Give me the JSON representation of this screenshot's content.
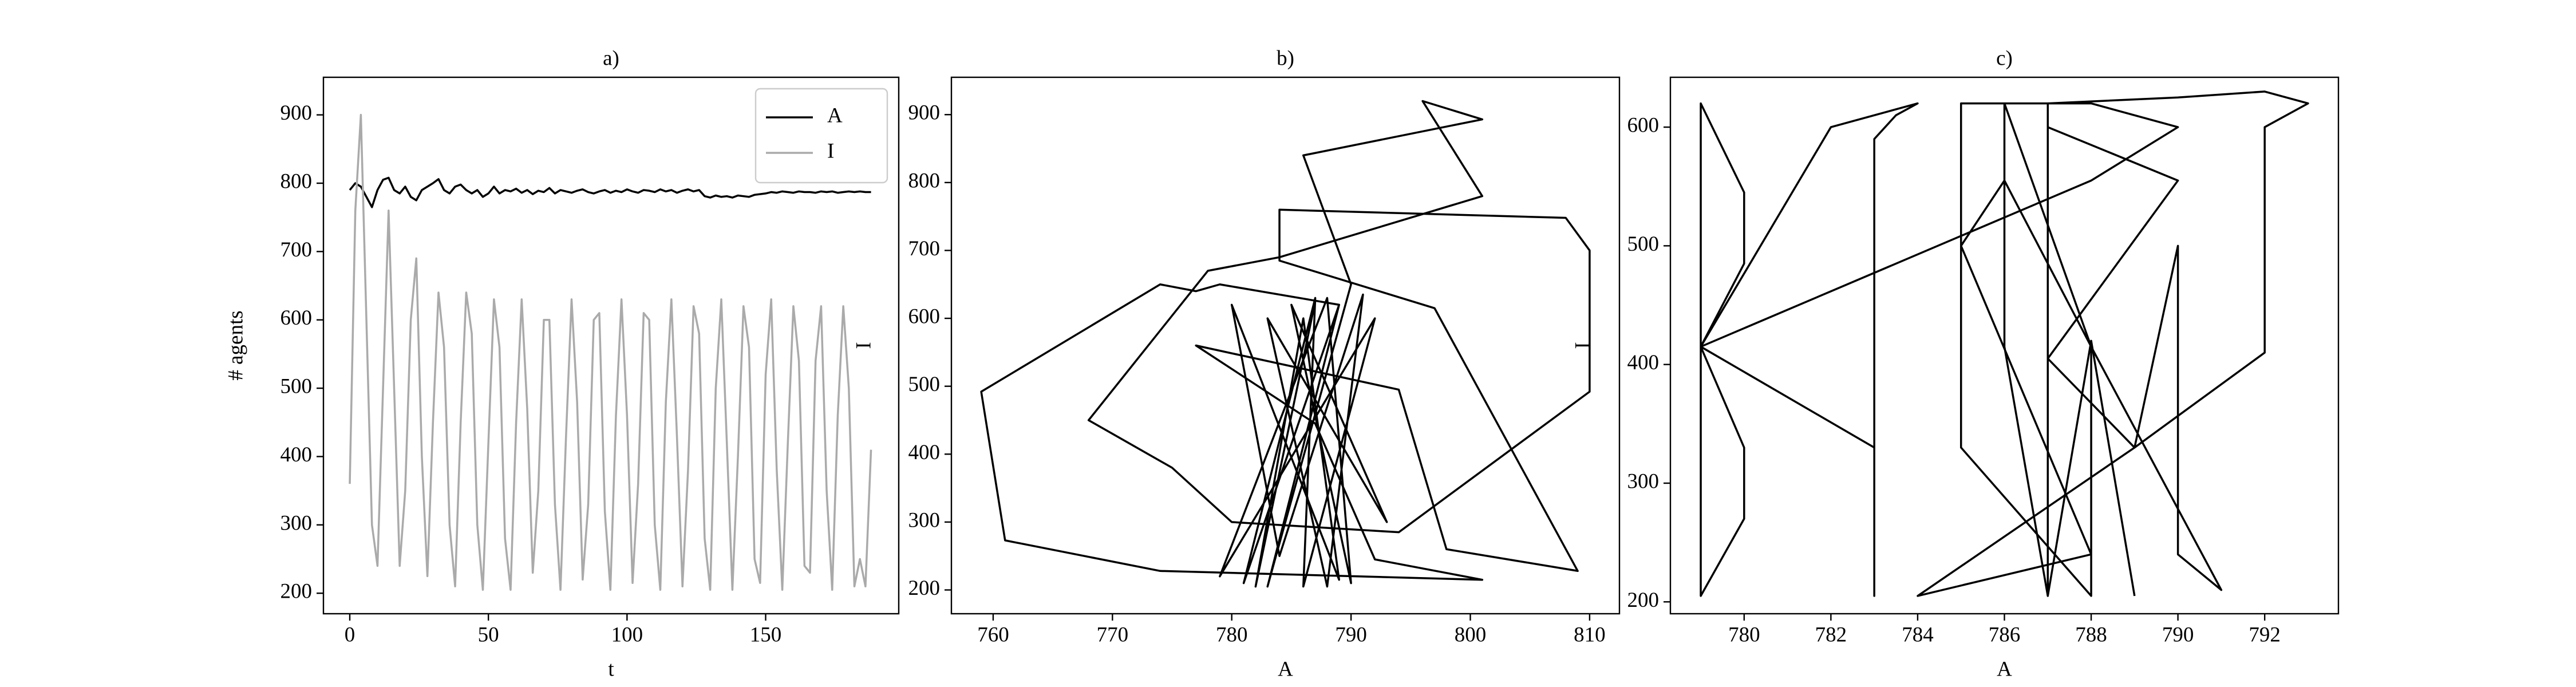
{
  "chart_data": [
    {
      "type": "line",
      "title": "a)",
      "x_label": "t",
      "y_label": "# agents",
      "legend": "upper right",
      "x": [
        0,
        2,
        4,
        6,
        8,
        10,
        12,
        14,
        16,
        18,
        20,
        22,
        24,
        26,
        28,
        30,
        32,
        34,
        36,
        38,
        40,
        42,
        44,
        46,
        48,
        50,
        52,
        54,
        56,
        58,
        60,
        62,
        64,
        66,
        68,
        70,
        72,
        74,
        76,
        78,
        80,
        82,
        84,
        86,
        88,
        90,
        92,
        94,
        96,
        98,
        100,
        102,
        104,
        106,
        108,
        110,
        112,
        114,
        116,
        118,
        120,
        122,
        124,
        126,
        128,
        130,
        132,
        134,
        136,
        138,
        140,
        142,
        144,
        146,
        148,
        150,
        152,
        154,
        156,
        158,
        160,
        162,
        164,
        166,
        168,
        170,
        172,
        174,
        176,
        178,
        180,
        182,
        184,
        186,
        188
      ],
      "series": [
        {
          "name": "A",
          "color": "#000000",
          "values": [
            790,
            800,
            795,
            780,
            765,
            790,
            805,
            808,
            790,
            785,
            795,
            780,
            775,
            790,
            795,
            800,
            806,
            790,
            785,
            795,
            798,
            790,
            785,
            790,
            780,
            785,
            795,
            785,
            790,
            788,
            792,
            786,
            790,
            784,
            789,
            787,
            793,
            785,
            790,
            788,
            786,
            789,
            791,
            787,
            785,
            788,
            790,
            786,
            789,
            787,
            791,
            788,
            786,
            790,
            789,
            787,
            791,
            788,
            790,
            786,
            789,
            791,
            788,
            790,
            781,
            779,
            782,
            780,
            781,
            779,
            782,
            781,
            780,
            783,
            784,
            785,
            787,
            786,
            788,
            787,
            786,
            788,
            787,
            787,
            786,
            788,
            787,
            788,
            786,
            787,
            788,
            787,
            788,
            787,
            787
          ]
        },
        {
          "name": "I",
          "color": "#aaaaaa",
          "values": [
            360,
            760,
            900,
            600,
            300,
            240,
            500,
            760,
            500,
            240,
            350,
            600,
            690,
            400,
            225,
            450,
            640,
            560,
            300,
            210,
            450,
            640,
            580,
            300,
            205,
            420,
            630,
            560,
            280,
            205,
            450,
            630,
            470,
            230,
            350,
            600,
            600,
            330,
            205,
            430,
            630,
            480,
            220,
            330,
            600,
            610,
            320,
            205,
            460,
            630,
            460,
            215,
            360,
            610,
            600,
            300,
            205,
            480,
            630,
            430,
            210,
            380,
            620,
            580,
            280,
            205,
            500,
            630,
            420,
            205,
            400,
            620,
            560,
            250,
            215,
            520,
            630,
            380,
            205,
            420,
            620,
            540,
            240,
            230,
            540,
            620,
            350,
            205,
            460,
            620,
            500,
            210,
            250,
            210,
            410
          ]
        }
      ],
      "xlim": [
        -9.5,
        198
      ],
      "ylim": [
        170,
        955
      ],
      "xticks": [
        0,
        50,
        100,
        150
      ],
      "yticks": [
        200,
        300,
        400,
        500,
        600,
        700,
        800,
        900
      ]
    },
    {
      "type": "line",
      "title": "b)",
      "x_label": "A",
      "y_label": "I",
      "color": "#000000",
      "x": [
        789,
        779,
        777,
        774,
        759,
        761,
        774,
        801,
        792,
        787,
        777,
        794,
        798,
        809,
        797,
        784,
        784,
        808,
        810,
        810,
        794,
        780,
        775,
        768,
        778,
        784,
        801,
        796,
        801,
        786,
        790,
        783,
        789,
        781,
        787,
        786,
        792,
        779,
        788,
        790,
        785,
        793,
        783,
        788,
        791,
        784,
        780,
        789,
        786,
        782,
        787
      ],
      "values": [
        620,
        650,
        640,
        650,
        492,
        273,
        228,
        215,
        245,
        445,
        560,
        495,
        260,
        228,
        615,
        685,
        760,
        748,
        700,
        492,
        285,
        300,
        380,
        450,
        670,
        690,
        780,
        920,
        893,
        840,
        650,
        205,
        620,
        210,
        630,
        205,
        600,
        220,
        630,
        210,
        620,
        300,
        600,
        205,
        635,
        250,
        620,
        215,
        600,
        205,
        625
      ],
      "xlim": [
        756.5,
        812.5
      ],
      "ylim": [
        165,
        955
      ],
      "xticks": [
        760,
        770,
        780,
        790,
        800,
        810
      ],
      "yticks": [
        200,
        300,
        400,
        500,
        600,
        700,
        800,
        900
      ]
    },
    {
      "type": "line",
      "title": "c)",
      "x_label": "A",
      "y_label": "I",
      "color": "#000000",
      "x": [
        779,
        780,
        780,
        779,
        780,
        780,
        779,
        779,
        779,
        782,
        784,
        783.5,
        783,
        783,
        783,
        779,
        788,
        790,
        788,
        785,
        785,
        788,
        788,
        786,
        786,
        787,
        787,
        790,
        792,
        793,
        792,
        792,
        789,
        790,
        790,
        791,
        788,
        786,
        785,
        788,
        784,
        789,
        787,
        790,
        787,
        787,
        788,
        789
      ],
      "values": [
        620,
        545,
        485,
        415,
        330,
        270,
        205,
        620,
        415,
        600,
        620,
        610,
        590,
        205,
        330,
        415,
        555,
        600,
        620,
        620,
        330,
        205,
        415,
        620,
        415,
        205,
        620,
        625,
        630,
        620,
        600,
        410,
        330,
        500,
        240,
        210,
        415,
        555,
        500,
        240,
        205,
        330,
        405,
        555,
        600,
        205,
        420,
        205
      ],
      "xlim": [
        778.3,
        793.7
      ],
      "ylim": [
        190,
        642
      ],
      "xticks": [
        780,
        782,
        784,
        786,
        788,
        790,
        792
      ],
      "yticks": [
        200,
        300,
        400,
        500,
        600
      ]
    }
  ]
}
